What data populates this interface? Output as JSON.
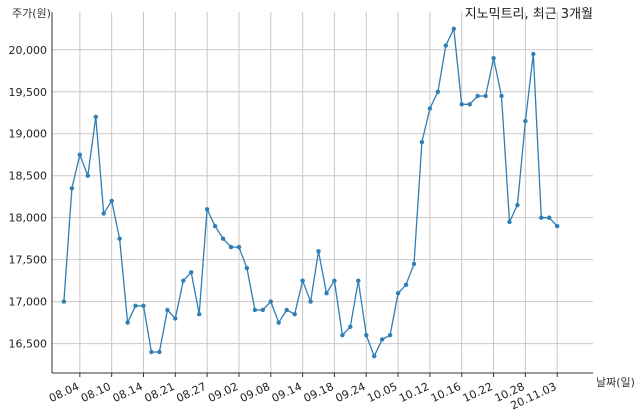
{
  "chart_data": {
    "type": "line",
    "title": "지노믹트리, 최근 3개월",
    "ylabel": "주가(원)",
    "xlabel": "날짜(일)",
    "ylim": [
      16150,
      20450
    ],
    "yticks": [
      16500,
      17000,
      17500,
      18000,
      18500,
      19000,
      19500,
      20000
    ],
    "ytick_labels": [
      "16,500",
      "17,000",
      "17,500",
      "18,000",
      "18,500",
      "19,000",
      "19,500",
      "20,000"
    ],
    "xlim": [
      -1.5,
      66.5
    ],
    "xticks": [
      2,
      6,
      10,
      14,
      18,
      22,
      26,
      30,
      34,
      38,
      42,
      46,
      50,
      54,
      58,
      62
    ],
    "xtick_labels": [
      "08.04",
      "08.10",
      "08.14",
      "08.21",
      "08.27",
      "09.02",
      "09.08",
      "09.14",
      "09.18",
      "09.24",
      "10.05",
      "10.12",
      "10.16",
      "10.22",
      "10.28",
      "20.11.03"
    ],
    "grid": true,
    "color": "#2f7fb5",
    "series": [
      {
        "values": [
          17000,
          18350,
          18750,
          18500,
          19200,
          18050,
          18200,
          17750,
          16750,
          16950,
          16950,
          16400,
          16400,
          16900,
          16800,
          17250,
          17350,
          16850,
          18100,
          17900,
          17750,
          17650,
          17650,
          17400,
          16900,
          16900,
          17000,
          16750,
          16900,
          16850,
          17250,
          17000,
          17600,
          17100,
          17250,
          16600,
          16700,
          17250,
          16600,
          16350,
          16550,
          16600,
          17100,
          17200,
          17450,
          18900,
          19300,
          19500,
          20050,
          20250,
          19350,
          19350,
          19450,
          19450,
          19900,
          19450,
          17950,
          18150,
          19150,
          19950,
          18000,
          18000,
          17900
        ]
      }
    ]
  }
}
